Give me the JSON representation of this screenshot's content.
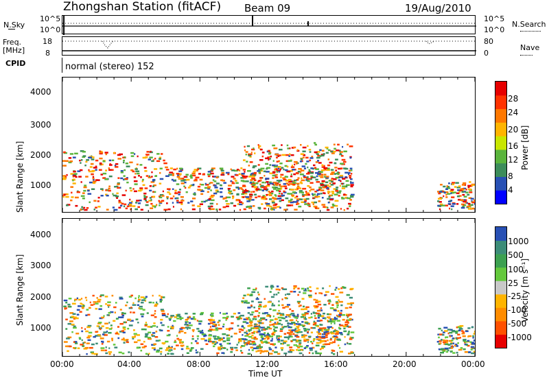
{
  "header": {
    "station": "Zhongshan Station (fitACF)",
    "beam": "Beam 09",
    "date": "19/Aug/2010"
  },
  "strips": {
    "nsky_label": "N.Sky",
    "nsky_ticks": [
      "10^5",
      "10^0"
    ],
    "nsearch_label": "N.Search",
    "nsearch_ticks": [
      "10^5",
      "10^0"
    ],
    "freq_label_1": "Freq.",
    "freq_label_2": "[MHz]",
    "freq_ticks": [
      "18",
      "8"
    ],
    "nave_label": "Nave",
    "nave_ticks": [
      "80",
      "0"
    ],
    "cpid_label": "CPID",
    "cpid_text": "normal (stereo) 152"
  },
  "chart_data": [
    {
      "type": "heatmap",
      "name": "power",
      "ylabel": "Slant Range [km]",
      "yticks": [
        "4000",
        "3000",
        "2000",
        "1000"
      ],
      "ylim": [
        180,
        4500
      ],
      "colorbar_label": "Power [dB]",
      "colorbar_ticks": [
        "28",
        "24",
        "20",
        "16",
        "12",
        "8",
        "4"
      ],
      "colorbar_colors": [
        "#0000ff",
        "#2850b4",
        "#3c8c5a",
        "#5ab43c",
        "#c8e600",
        "#ffb400",
        "#ff7800",
        "#ff3200",
        "#e60000"
      ]
    },
    {
      "type": "heatmap",
      "name": "velocity",
      "ylabel": "Slant Range [km]",
      "yticks": [
        "4000",
        "3000",
        "2000",
        "1000"
      ],
      "ylim": [
        180,
        4500
      ],
      "colorbar_label": "Velocity [m s⁻¹]",
      "colorbar_ticks": [
        "1000",
        "500",
        "100",
        "25",
        "-25",
        "-100",
        "-500",
        "-1000"
      ],
      "colorbar_colors": [
        "#e60000",
        "#ff5000",
        "#ff8c00",
        "#ffb400",
        "#c8c8c8",
        "#64c83c",
        "#3ca050",
        "#3c8c78",
        "#2850b4"
      ]
    }
  ],
  "xaxis": {
    "label": "Time UT",
    "ticks": [
      "00:00",
      "04:00",
      "08:00",
      "12:00",
      "16:00",
      "20:00",
      "00:00"
    ]
  },
  "colors": {
    "frame": "#000000"
  }
}
